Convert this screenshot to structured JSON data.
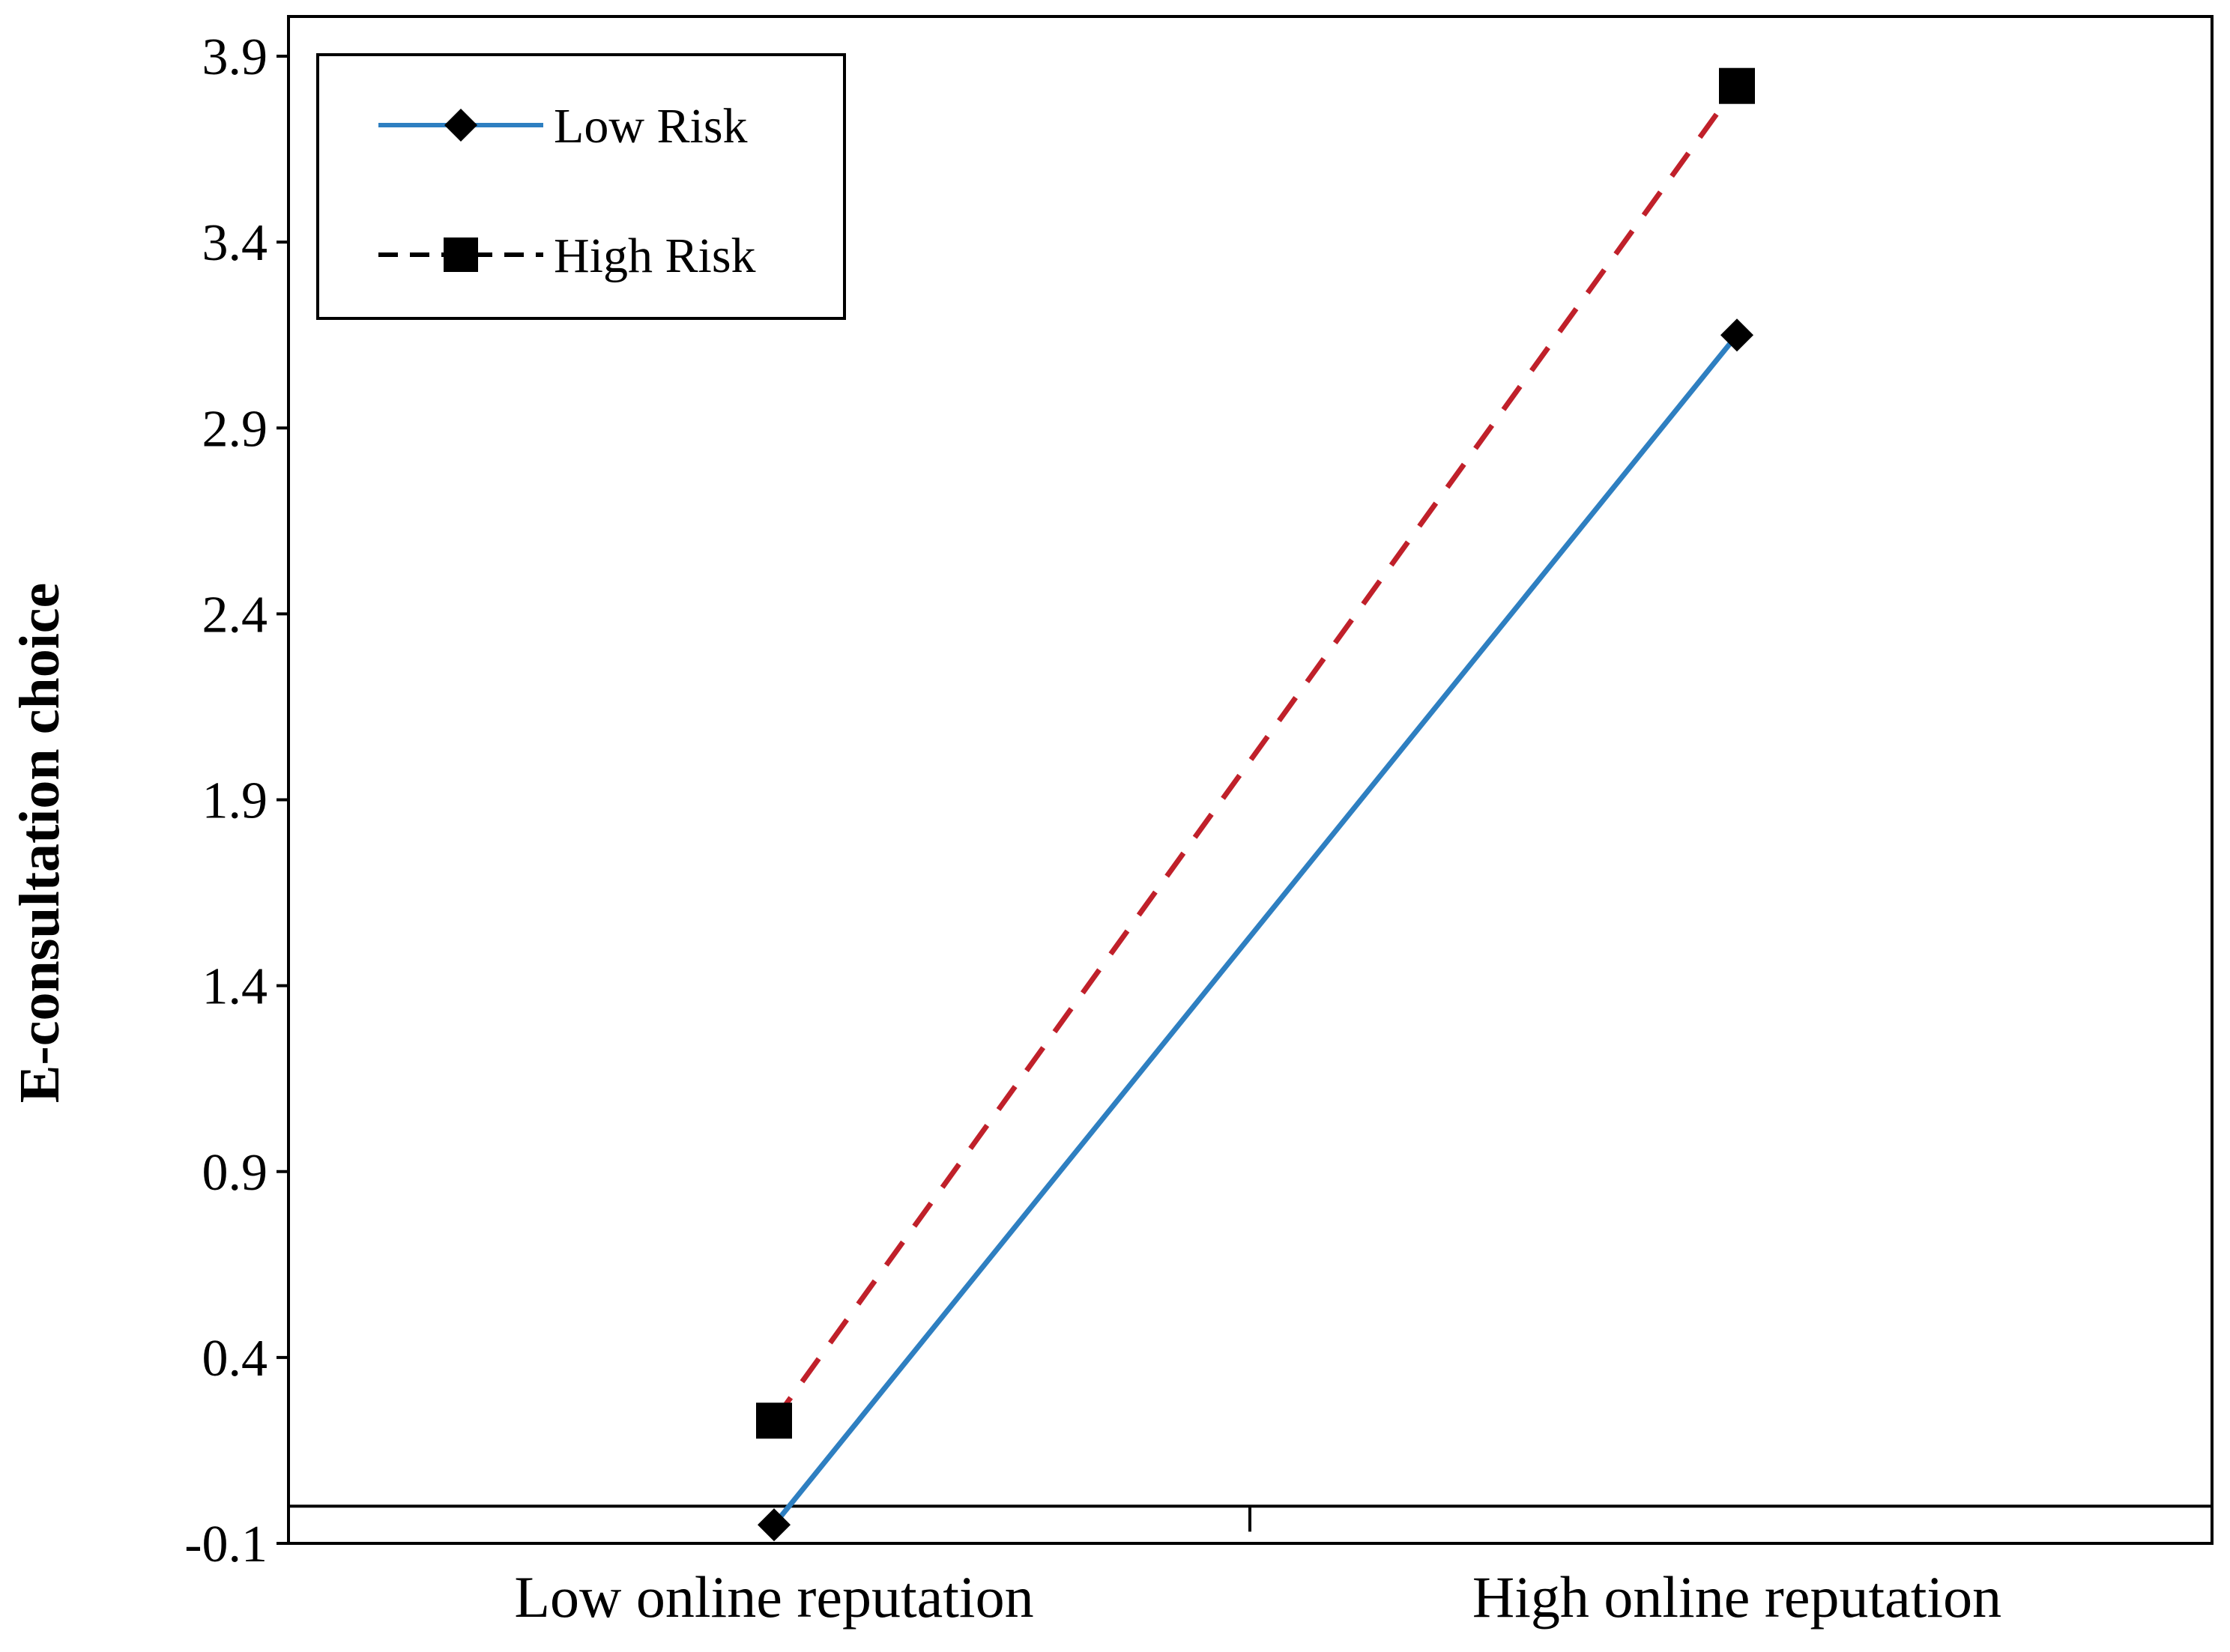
{
  "chart_data": {
    "type": "line",
    "title": "",
    "xlabel": "",
    "ylabel": "E-consultation choice",
    "categories": [
      "Low online reputation",
      "High online reputation"
    ],
    "ylim": [
      -0.1,
      4.0
    ],
    "yticks": [
      "3.9",
      "3.4",
      "2.9",
      "2.4",
      "1.9",
      "1.4",
      "0.9",
      "0.4",
      "-0.1"
    ],
    "ytick_values": [
      3.9,
      3.4,
      2.9,
      2.4,
      1.9,
      1.4,
      0.9,
      0.4,
      -0.1
    ],
    "baseline": 0.0,
    "grid": false,
    "legend_position": "top-left",
    "series": [
      {
        "name": "Low Risk",
        "values": [
          -0.05,
          3.15
        ],
        "color": "#2e7fc1",
        "style": "solid",
        "marker": "diamond"
      },
      {
        "name": "High Risk",
        "values": [
          0.23,
          3.82
        ],
        "color": "#c0202a",
        "style": "dashed",
        "marker": "square"
      }
    ]
  }
}
